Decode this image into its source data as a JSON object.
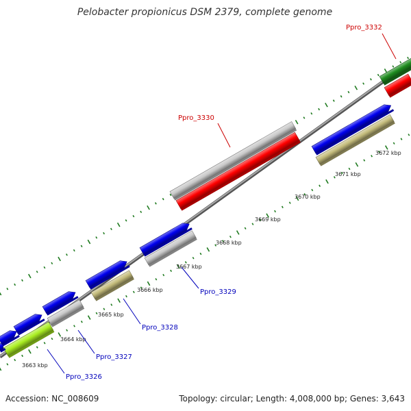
{
  "title": "Pelobacter propionicus DSM 2379, complete genome",
  "footer": {
    "accession": "Accession: NC_008609",
    "topology": "Topology: circular; Length: 4,008,000 bp; Genes: 3,643"
  },
  "colors": {
    "backbone": "#7f7f7f",
    "tick": "#1f7a1f",
    "gene_label_forward": "#cc0000",
    "gene_label_reverse": "#0000bb"
  },
  "kbp_labels": [
    "3663 kbp",
    "3664 kbp",
    "3665 kbp",
    "3666 kbp",
    "3667 kbp",
    "3668 kbp",
    "3669 kbp",
    "3670 kbp",
    "3671 kbp",
    "3672 kbp"
  ],
  "gene_labels": [
    {
      "text": "Ppro_3326",
      "strand": "reverse"
    },
    {
      "text": "Ppro_3327",
      "strand": "reverse"
    },
    {
      "text": "Ppro_3328",
      "strand": "reverse"
    },
    {
      "text": "Ppro_3329",
      "strand": "reverse"
    },
    {
      "text": "Ppro_3330",
      "strand": "forward"
    },
    {
      "text": "Ppro_3332",
      "strand": "forward"
    }
  ],
  "features": [
    {
      "track": "outer",
      "color": "#1f8c1f"
    },
    {
      "track": "outer",
      "color": "#c9c9c9"
    },
    {
      "track": "inner",
      "color": "#ff0000"
    },
    {
      "track": "inner",
      "color": "#ff0000"
    },
    {
      "track": "inner",
      "color": "#0000ee"
    },
    {
      "track": "inner",
      "color": "#c4bc7c"
    },
    {
      "track": "inner",
      "color": "#0000ee"
    },
    {
      "track": "inner",
      "color": "#c9c9c9"
    },
    {
      "track": "inner",
      "color": "#0000ee"
    },
    {
      "track": "inner",
      "color": "#c4bc7c"
    },
    {
      "track": "inner",
      "color": "#0000ee"
    },
    {
      "track": "inner",
      "color": "#c9c9c9"
    },
    {
      "track": "inner",
      "color": "#0000ee"
    },
    {
      "track": "inner",
      "color": "#aaee22"
    },
    {
      "track": "inner",
      "color": "#0000ee"
    },
    {
      "track": "inner",
      "color": "#0000ee"
    }
  ]
}
